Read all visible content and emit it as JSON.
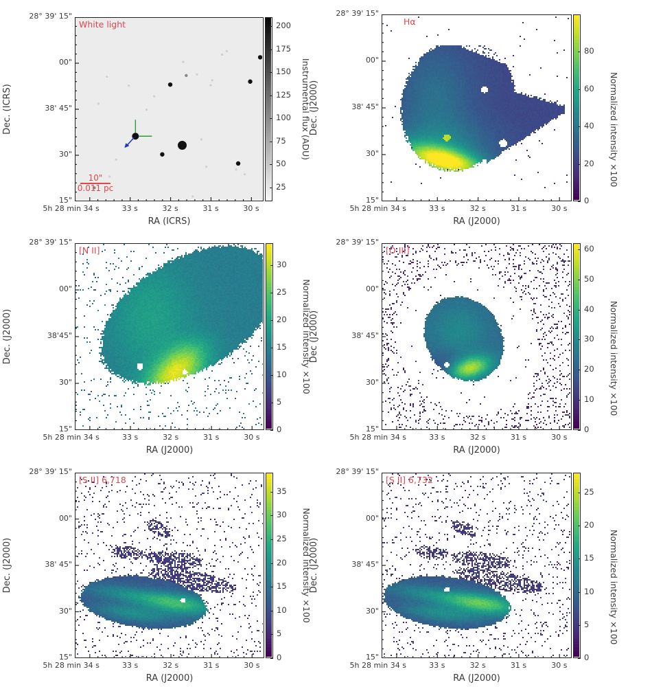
{
  "figure": {
    "panels_count": 6
  },
  "chart_data": [
    {
      "type": "heatmap",
      "title": "White light",
      "xlabel": "RA (ICRS)",
      "ylabel": "Dec. (ICRS)",
      "xticks": [
        "5h 28 min 34 s",
        "33 s",
        "32 s",
        "31 s",
        "30 s"
      ],
      "yticks": [
        "28° 39' 15\"",
        "00\"",
        "38' 45\"",
        "30\"",
        "15\""
      ],
      "colorbar": {
        "label": "Instrumental flux (ADU)",
        "ticks": [
          25,
          50,
          75,
          100,
          125,
          150,
          175,
          200
        ],
        "range": [
          10,
          210
        ],
        "cmap": "gray_r"
      },
      "scale_bar": {
        "angular": "10\"",
        "physical": "0.011 pc"
      },
      "annotations": [
        "green cross marker at central source",
        "blue arrow pointing south-west from central source"
      ],
      "sources": [
        {
          "ra_s": 32.87,
          "dec_s": 36,
          "brightness": "bright"
        },
        {
          "ra_s": 31.7,
          "dec_s": 33,
          "brightness": "brightest"
        },
        {
          "ra_s": 32.2,
          "dec_s": 30,
          "brightness": "medium"
        },
        {
          "ra_s": 32.0,
          "dec_s": 53,
          "brightness": "medium"
        },
        {
          "ra_s": 31.6,
          "dec_s": 56,
          "brightness": "faint"
        },
        {
          "ra_s": 30.0,
          "dec_s": 54,
          "brightness": "medium"
        },
        {
          "ra_s": 29.75,
          "dec_s": 62,
          "brightness": "medium"
        },
        {
          "ra_s": 30.3,
          "dec_s": 27,
          "brightness": "medium"
        },
        {
          "ra_s": 33.9,
          "dec_s": 19,
          "brightness": "faint"
        }
      ]
    },
    {
      "type": "heatmap",
      "title": "Hα",
      "xlabel": "RA (J2000)",
      "ylabel": "Dec. (J2000)",
      "xticks": [
        "5h 28 min 34 s",
        "33 s",
        "32 s",
        "31 s",
        "30 s"
      ],
      "yticks": [
        "28° 39' 15\"",
        "00\"",
        "38' 45\"",
        "30\"",
        "15\""
      ],
      "colorbar": {
        "label": "Normalized intensity ×100",
        "ticks": [
          0,
          20,
          40,
          60,
          80
        ],
        "range": [
          0,
          100
        ],
        "cmap": "viridis"
      },
      "morphology": "broad fan-shaped nebula with tail to the west; brightest arc in south near 33 s, 28\""
    },
    {
      "type": "heatmap",
      "title": "[N II]",
      "xlabel": "RA (J2000)",
      "ylabel": "Dec. (J2000)",
      "xticks": [
        "5h 28 min 34 s",
        "33 s",
        "32 s",
        "31 s",
        "30 s"
      ],
      "yticks": [
        "28° 39' 15\"",
        "00\"",
        "38'45\"",
        "30\"",
        "15\""
      ],
      "colorbar": {
        "label": "Normalized intensity ×100",
        "ticks": [
          0,
          5,
          10,
          15,
          20,
          25,
          30
        ],
        "range": [
          0,
          34
        ],
        "cmap": "viridis"
      },
      "morphology": "elongated ellipse extending to north-west; brightest near 32 s, 31\""
    },
    {
      "type": "heatmap",
      "title": "[O III]",
      "xlabel": "RA (J2000)",
      "ylabel": "Dec (J2000)",
      "xticks": [
        "5h 28 min 34 s",
        "33 s",
        "32 s",
        "31 s",
        "30 s"
      ],
      "yticks": [
        "28° 39' 15\"",
        "00\"",
        "38' 45\"",
        "30\"",
        "15\""
      ],
      "colorbar": {
        "label": "Normalized intensity ×100",
        "ticks": [
          0,
          10,
          20,
          30,
          40,
          50,
          60
        ],
        "range": [
          0,
          62
        ],
        "cmap": "viridis"
      },
      "morphology": "compact oval; bright arc near 32.4 s, 34\""
    },
    {
      "type": "heatmap",
      "title": "[S II] 6,718",
      "xlabel": "RA (J2000)",
      "ylabel": "Dec. (J2000)",
      "xticks": [
        "5h 28 min 34 s",
        "33 s",
        "32 s",
        "31 s",
        "30 s"
      ],
      "yticks": [
        "28° 39' 15\"",
        "00\"",
        "38' 45\"",
        "30\"",
        "15\""
      ],
      "colorbar": {
        "label": "Normalized intensity ×100",
        "ticks": [
          0,
          5,
          10,
          15,
          20,
          25,
          30,
          35
        ],
        "range": [
          0,
          39
        ],
        "cmap": "viridis"
      },
      "morphology": "elongated east-west bar with filaments to the north; brightest near 32 s, 32\""
    },
    {
      "type": "heatmap",
      "title": "[S II] 6,732",
      "xlabel": "RA (J2000)",
      "ylabel": "Dec. (J2000)",
      "xticks": [
        "5h 28 min 34 s",
        "33 s",
        "32 s",
        "31 s",
        "30 s"
      ],
      "yticks": [
        "28° 39' 15\"",
        "00\"",
        "38' 45\"",
        "30\"",
        "15\""
      ],
      "colorbar": {
        "label": "Normalized intensity ×100",
        "ticks": [
          0,
          5,
          10,
          15,
          20,
          25
        ],
        "range": [
          0,
          28
        ],
        "cmap": "viridis"
      },
      "morphology": "elongated east-west bar with filaments to the north; brightest near 32 s, 32\""
    }
  ]
}
